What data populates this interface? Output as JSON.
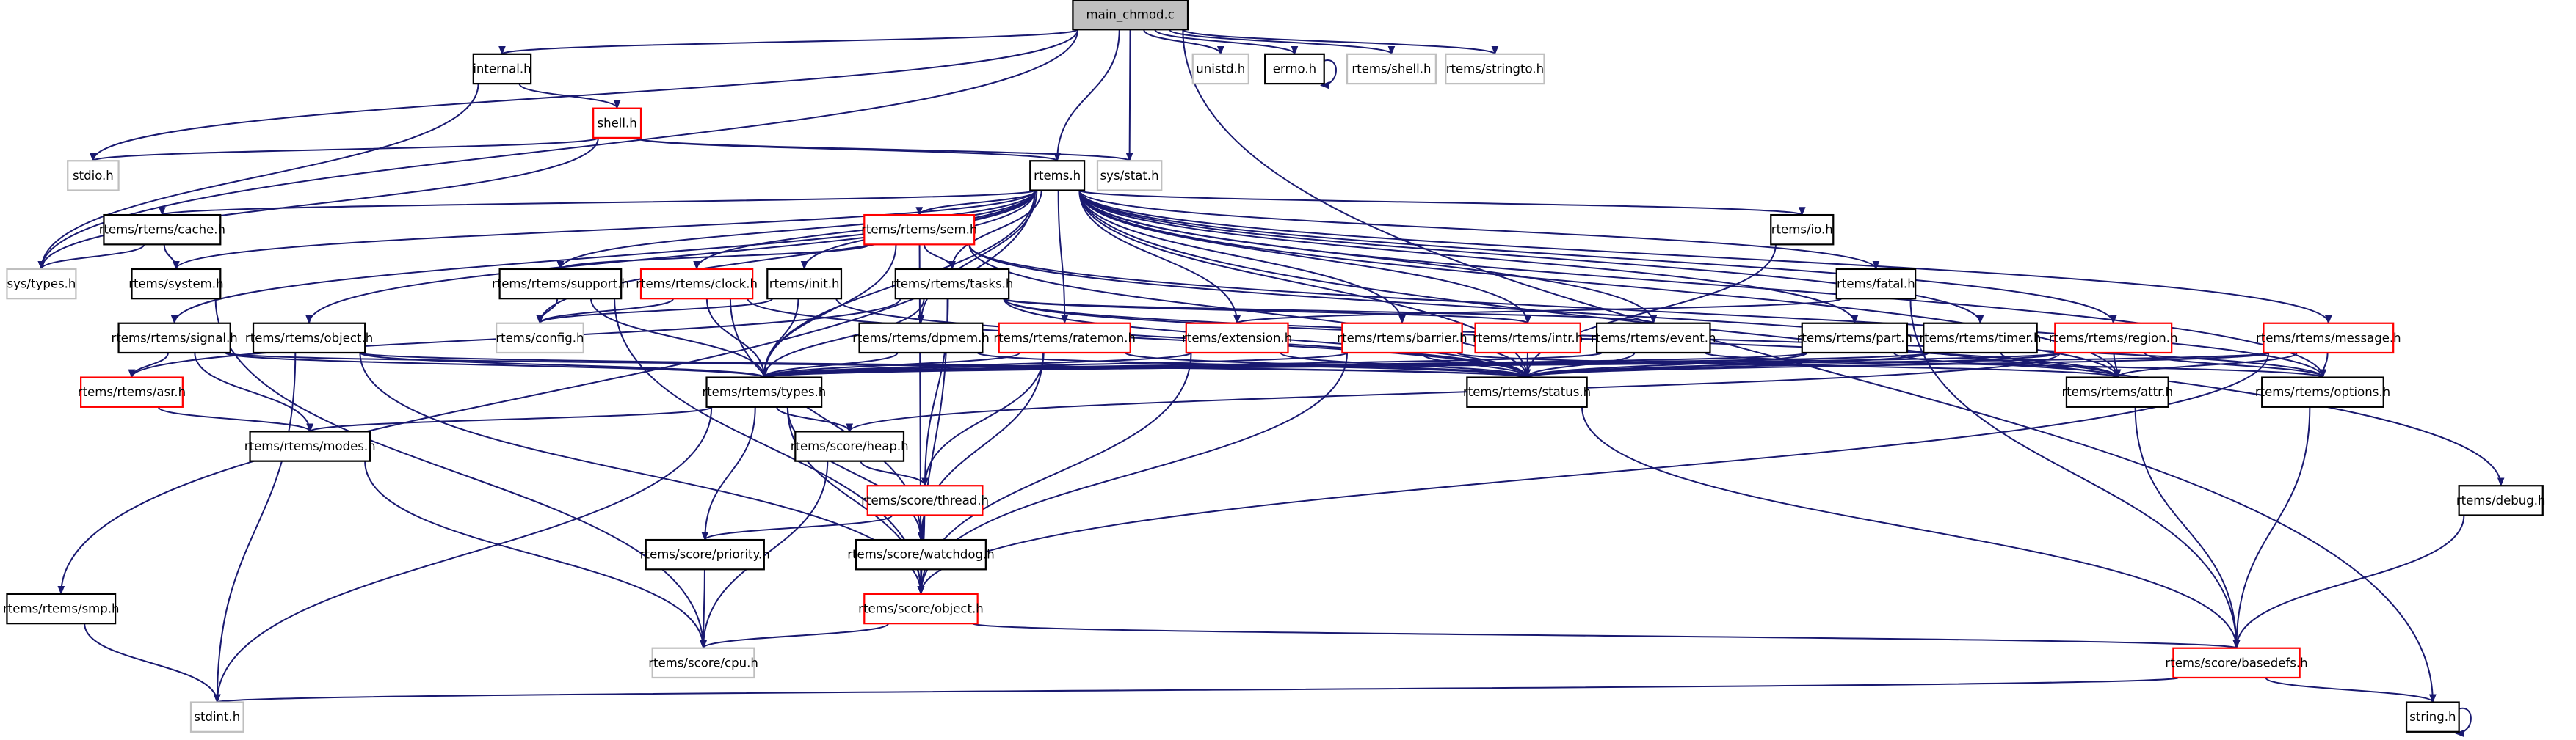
{
  "graph": {
    "edge_color": "#191970",
    "truncated_color": "#ff0000",
    "external_color": "#bfbfbf",
    "nodes": [
      {
        "id": "main",
        "label": "main_chmod.c",
        "style": "root"
      },
      {
        "id": "internal",
        "label": "internal.h",
        "style": "normal"
      },
      {
        "id": "unistd",
        "label": "unistd.h",
        "style": "external"
      },
      {
        "id": "errno",
        "label": "errno.h",
        "style": "normal"
      },
      {
        "id": "rshell",
        "label": "rtems/shell.h",
        "style": "external"
      },
      {
        "id": "stringto",
        "label": "rtems/stringto.h",
        "style": "external"
      },
      {
        "id": "shell",
        "label": "shell.h",
        "style": "truncated"
      },
      {
        "id": "stdio",
        "label": "stdio.h",
        "style": "external"
      },
      {
        "id": "rtems",
        "label": "rtems.h",
        "style": "normal"
      },
      {
        "id": "sysstat",
        "label": "sys/stat.h",
        "style": "external"
      },
      {
        "id": "cache",
        "label": "rtems/rtems/cache.h",
        "style": "normal"
      },
      {
        "id": "sem",
        "label": "rtems/rtems/sem.h",
        "style": "truncated"
      },
      {
        "id": "io",
        "label": "rtems/io.h",
        "style": "normal"
      },
      {
        "id": "systypes",
        "label": "sys/types.h",
        "style": "external"
      },
      {
        "id": "system",
        "label": "rtems/system.h",
        "style": "normal"
      },
      {
        "id": "support",
        "label": "rtems/rtems/support.h",
        "style": "normal"
      },
      {
        "id": "clock",
        "label": "rtems/rtems/clock.h",
        "style": "truncated"
      },
      {
        "id": "init",
        "label": "rtems/init.h",
        "style": "normal"
      },
      {
        "id": "tasks",
        "label": "rtems/rtems/tasks.h",
        "style": "normal"
      },
      {
        "id": "fatal",
        "label": "rtems/fatal.h",
        "style": "normal"
      },
      {
        "id": "signal",
        "label": "rtems/rtems/signal.h",
        "style": "normal"
      },
      {
        "id": "object",
        "label": "rtems/rtems/object.h",
        "style": "normal"
      },
      {
        "id": "config",
        "label": "rtems/config.h",
        "style": "external"
      },
      {
        "id": "dpmem",
        "label": "rtems/rtems/dpmem.h",
        "style": "normal"
      },
      {
        "id": "ratemon",
        "label": "rtems/rtems/ratemon.h",
        "style": "truncated"
      },
      {
        "id": "extension",
        "label": "rtems/extension.h",
        "style": "truncated"
      },
      {
        "id": "barrier",
        "label": "rtems/rtems/barrier.h",
        "style": "truncated"
      },
      {
        "id": "intr",
        "label": "rtems/rtems/intr.h",
        "style": "truncated"
      },
      {
        "id": "event",
        "label": "rtems/rtems/event.h",
        "style": "normal"
      },
      {
        "id": "part",
        "label": "rtems/rtems/part.h",
        "style": "normal"
      },
      {
        "id": "timer",
        "label": "rtems/rtems/timer.h",
        "style": "normal"
      },
      {
        "id": "region",
        "label": "rtems/rtems/region.h",
        "style": "truncated"
      },
      {
        "id": "message",
        "label": "rtems/rtems/message.h",
        "style": "truncated"
      },
      {
        "id": "asr",
        "label": "rtems/rtems/asr.h",
        "style": "truncated"
      },
      {
        "id": "types",
        "label": "rtems/rtems/types.h",
        "style": "normal"
      },
      {
        "id": "status",
        "label": "rtems/rtems/status.h",
        "style": "normal"
      },
      {
        "id": "attr",
        "label": "rtems/rtems/attr.h",
        "style": "normal"
      },
      {
        "id": "options",
        "label": "rtems/rtems/options.h",
        "style": "normal"
      },
      {
        "id": "modes",
        "label": "rtems/rtems/modes.h",
        "style": "normal"
      },
      {
        "id": "heap",
        "label": "rtems/score/heap.h",
        "style": "normal"
      },
      {
        "id": "thread",
        "label": "rtems/score/thread.h",
        "style": "truncated"
      },
      {
        "id": "debug",
        "label": "rtems/debug.h",
        "style": "normal"
      },
      {
        "id": "priority",
        "label": "rtems/score/priority.h",
        "style": "normal"
      },
      {
        "id": "watchdog",
        "label": "rtems/score/watchdog.h",
        "style": "normal"
      },
      {
        "id": "smp",
        "label": "rtems/rtems/smp.h",
        "style": "normal"
      },
      {
        "id": "sobject",
        "label": "rtems/score/object.h",
        "style": "truncated"
      },
      {
        "id": "cpu",
        "label": "rtems/score/cpu.h",
        "style": "external"
      },
      {
        "id": "basedefs",
        "label": "rtems/score/basedefs.h",
        "style": "truncated"
      },
      {
        "id": "stdint",
        "label": "stdint.h",
        "style": "external"
      },
      {
        "id": "string",
        "label": "string.h",
        "style": "normal"
      }
    ],
    "edges": [
      [
        "main",
        "internal"
      ],
      [
        "main",
        "systypes"
      ],
      [
        "main",
        "stdio"
      ],
      [
        "main",
        "rtems"
      ],
      [
        "main",
        "sysstat"
      ],
      [
        "main",
        "unistd"
      ],
      [
        "main",
        "errno"
      ],
      [
        "main",
        "rshell"
      ],
      [
        "main",
        "stringto"
      ],
      [
        "main",
        "string"
      ],
      [
        "internal",
        "systypes"
      ],
      [
        "internal",
        "shell"
      ],
      [
        "shell",
        "stdio"
      ],
      [
        "shell",
        "systypes"
      ],
      [
        "shell",
        "rtems"
      ],
      [
        "shell",
        "sysstat"
      ],
      [
        "errno",
        "errno"
      ],
      [
        "rtems",
        "cache"
      ],
      [
        "rtems",
        "sem"
      ],
      [
        "rtems",
        "io"
      ],
      [
        "rtems",
        "system"
      ],
      [
        "rtems",
        "support"
      ],
      [
        "rtems",
        "clock"
      ],
      [
        "rtems",
        "init"
      ],
      [
        "rtems",
        "tasks"
      ],
      [
        "rtems",
        "fatal"
      ],
      [
        "rtems",
        "signal"
      ],
      [
        "rtems",
        "object"
      ],
      [
        "rtems",
        "config"
      ],
      [
        "rtems",
        "dpmem"
      ],
      [
        "rtems",
        "ratemon"
      ],
      [
        "rtems",
        "extension"
      ],
      [
        "rtems",
        "barrier"
      ],
      [
        "rtems",
        "intr"
      ],
      [
        "rtems",
        "event"
      ],
      [
        "rtems",
        "part"
      ],
      [
        "rtems",
        "timer"
      ],
      [
        "rtems",
        "region"
      ],
      [
        "rtems",
        "message"
      ],
      [
        "rtems",
        "types"
      ],
      [
        "rtems",
        "status"
      ],
      [
        "rtems",
        "options"
      ],
      [
        "rtems",
        "attr"
      ],
      [
        "rtems",
        "smp"
      ],
      [
        "rtems",
        "debug"
      ],
      [
        "cache",
        "systypes"
      ],
      [
        "cache",
        "system"
      ],
      [
        "system",
        "cpu"
      ],
      [
        "sem",
        "support"
      ],
      [
        "sem",
        "tasks"
      ],
      [
        "sem",
        "types"
      ],
      [
        "sem",
        "attr"
      ],
      [
        "sem",
        "options"
      ],
      [
        "sem",
        "status"
      ],
      [
        "sem",
        "sobject"
      ],
      [
        "support",
        "config"
      ],
      [
        "support",
        "types"
      ],
      [
        "support",
        "sobject"
      ],
      [
        "clock",
        "config"
      ],
      [
        "clock",
        "types"
      ],
      [
        "clock",
        "watchdog"
      ],
      [
        "clock",
        "status"
      ],
      [
        "init",
        "config"
      ],
      [
        "init",
        "types"
      ],
      [
        "init",
        "status"
      ],
      [
        "tasks",
        "types"
      ],
      [
        "tasks",
        "status"
      ],
      [
        "tasks",
        "attr"
      ],
      [
        "tasks",
        "options"
      ],
      [
        "tasks",
        "asr"
      ],
      [
        "tasks",
        "thread"
      ],
      [
        "tasks",
        "sobject"
      ],
      [
        "tasks",
        "intr"
      ],
      [
        "tasks",
        "event"
      ],
      [
        "fatal",
        "extension"
      ],
      [
        "fatal",
        "basedefs"
      ],
      [
        "signal",
        "asr"
      ],
      [
        "signal",
        "modes"
      ],
      [
        "signal",
        "types"
      ],
      [
        "signal",
        "status"
      ],
      [
        "object",
        "types"
      ],
      [
        "object",
        "status"
      ],
      [
        "object",
        "stdint"
      ],
      [
        "object",
        "sobject"
      ],
      [
        "dpmem",
        "types"
      ],
      [
        "dpmem",
        "status"
      ],
      [
        "ratemon",
        "types"
      ],
      [
        "ratemon",
        "status"
      ],
      [
        "ratemon",
        "thread"
      ],
      [
        "ratemon",
        "watchdog"
      ],
      [
        "extension",
        "types"
      ],
      [
        "extension",
        "status"
      ],
      [
        "extension",
        "sobject"
      ],
      [
        "barrier",
        "types"
      ],
      [
        "barrier",
        "status"
      ],
      [
        "barrier",
        "attr"
      ],
      [
        "barrier",
        "sobject"
      ],
      [
        "intr",
        "status"
      ],
      [
        "event",
        "types"
      ],
      [
        "event",
        "status"
      ],
      [
        "event",
        "options"
      ],
      [
        "part",
        "types"
      ],
      [
        "part",
        "status"
      ],
      [
        "part",
        "attr"
      ],
      [
        "timer",
        "types"
      ],
      [
        "timer",
        "status"
      ],
      [
        "timer",
        "attr"
      ],
      [
        "region",
        "types"
      ],
      [
        "region",
        "status"
      ],
      [
        "region",
        "attr"
      ],
      [
        "region",
        "options"
      ],
      [
        "region",
        "heap"
      ],
      [
        "message",
        "types"
      ],
      [
        "message",
        "status"
      ],
      [
        "message",
        "attr"
      ],
      [
        "message",
        "options"
      ],
      [
        "message",
        "sobject"
      ],
      [
        "io",
        "status"
      ],
      [
        "asr",
        "modes"
      ],
      [
        "types",
        "modes"
      ],
      [
        "types",
        "heap"
      ],
      [
        "types",
        "priority"
      ],
      [
        "types",
        "watchdog"
      ],
      [
        "types",
        "sobject"
      ],
      [
        "types",
        "stdint"
      ],
      [
        "status",
        "basedefs"
      ],
      [
        "attr",
        "basedefs"
      ],
      [
        "options",
        "basedefs"
      ],
      [
        "modes",
        "cpu"
      ],
      [
        "heap",
        "thread"
      ],
      [
        "heap",
        "cpu"
      ],
      [
        "thread",
        "priority"
      ],
      [
        "thread",
        "watchdog"
      ],
      [
        "thread",
        "sobject"
      ],
      [
        "priority",
        "cpu"
      ],
      [
        "watchdog",
        "sobject"
      ],
      [
        "smp",
        "stdint"
      ],
      [
        "sobject",
        "cpu"
      ],
      [
        "sobject",
        "basedefs"
      ],
      [
        "basedefs",
        "stdint"
      ],
      [
        "basedefs",
        "string"
      ],
      [
        "debug",
        "basedefs"
      ],
      [
        "string",
        "string"
      ]
    ]
  }
}
